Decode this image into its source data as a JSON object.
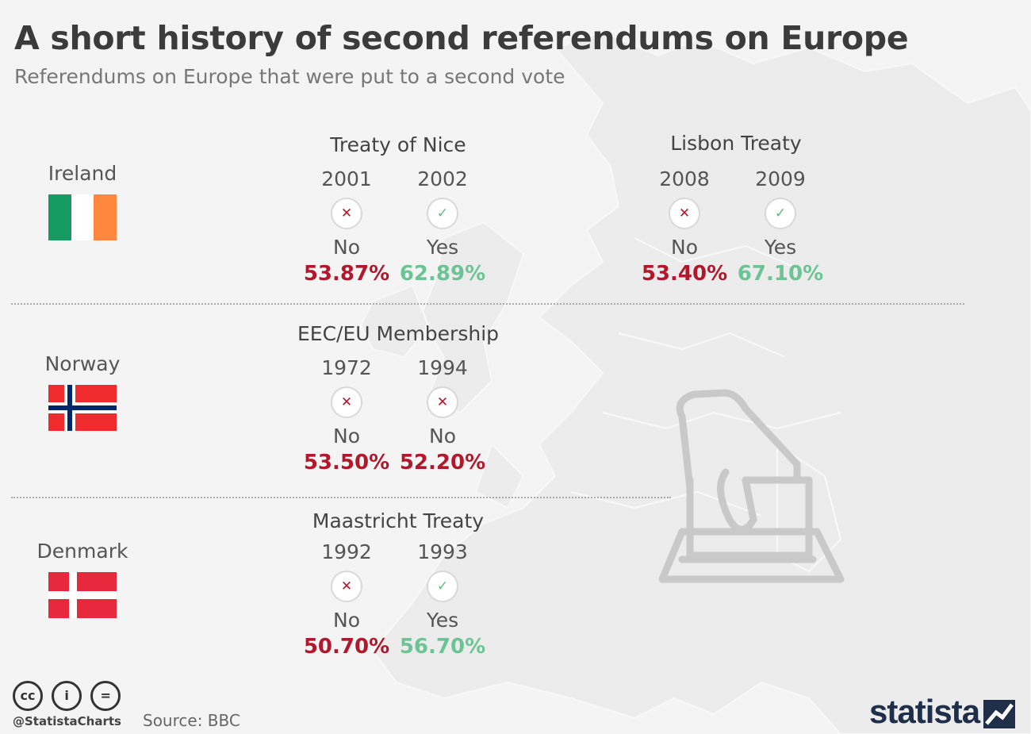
{
  "header": {
    "title": "A short history of second referendums on Europe",
    "subtitle": "Referendums on Europe that were put to a second vote"
  },
  "countries": [
    {
      "name": "Ireland",
      "flag_icon": "ireland-flag-icon",
      "referendums": [
        {
          "title": "Treaty of Nice",
          "votes": [
            {
              "year": "2001",
              "result": "No",
              "percent": "53.87%",
              "outcome": "no"
            },
            {
              "year": "2002",
              "result": "Yes",
              "percent": "62.89%",
              "outcome": "yes"
            }
          ]
        },
        {
          "title": "Lisbon Treaty",
          "votes": [
            {
              "year": "2008",
              "result": "No",
              "percent": "53.40%",
              "outcome": "no"
            },
            {
              "year": "2009",
              "result": "Yes",
              "percent": "67.10%",
              "outcome": "yes"
            }
          ]
        }
      ]
    },
    {
      "name": "Norway",
      "flag_icon": "norway-flag-icon",
      "referendums": [
        {
          "title": "EEC/EU Membership",
          "votes": [
            {
              "year": "1972",
              "result": "No",
              "percent": "53.50%",
              "outcome": "no"
            },
            {
              "year": "1994",
              "result": "No",
              "percent": "52.20%",
              "outcome": "no"
            }
          ]
        }
      ]
    },
    {
      "name": "Denmark",
      "flag_icon": "denmark-flag-icon",
      "referendums": [
        {
          "title": "Maastricht Treaty",
          "votes": [
            {
              "year": "1992",
              "result": "No",
              "percent": "50.70%",
              "outcome": "no"
            },
            {
              "year": "1993",
              "result": "Yes",
              "percent": "56.70%",
              "outcome": "yes"
            }
          ]
        }
      ]
    }
  ],
  "icons": {
    "no": "✕",
    "yes": "✓"
  },
  "colors": {
    "no": "#b2182b",
    "yes": "#6cc494",
    "brand": "#1f2f4a"
  },
  "footer": {
    "license_icons": [
      "cc-icon",
      "by-icon",
      "nd-icon"
    ],
    "license_glyphs": [
      "cc",
      "i",
      "="
    ],
    "handle": "@StatistaCharts",
    "source": "Source: BBC",
    "brand": "statista"
  }
}
